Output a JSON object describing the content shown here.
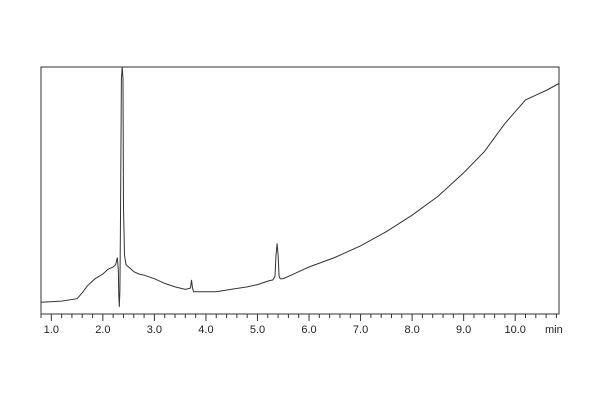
{
  "chart_data": {
    "type": "line",
    "title": "",
    "xlabel": "",
    "ylabel": "",
    "x_unit": "min",
    "xlim": [
      0.8,
      10.85
    ],
    "ylim": [
      -0.05,
      1.0
    ],
    "x_ticks": [
      "1.0",
      "2.0",
      "3.0",
      "4.0",
      "5.0",
      "6.0",
      "7.0",
      "8.0",
      "9.0",
      "10.0"
    ],
    "x_tick_values": [
      1.0,
      2.0,
      3.0,
      4.0,
      5.0,
      6.0,
      7.0,
      8.0,
      9.0,
      10.0
    ],
    "grid": false,
    "series": [
      {
        "name": "",
        "x": [
          0.8,
          1.2,
          1.5,
          1.6,
          1.7,
          1.85,
          2.0,
          2.1,
          2.2,
          2.25,
          2.28,
          2.3,
          2.31,
          2.32,
          2.33,
          2.34,
          2.36,
          2.375,
          2.39,
          2.4,
          2.42,
          2.45,
          2.5,
          2.55,
          2.6,
          2.7,
          2.8,
          3.0,
          3.2,
          3.4,
          3.6,
          3.7,
          3.72,
          3.74,
          3.76,
          3.78,
          3.8,
          3.9,
          4.0,
          4.2,
          4.5,
          4.8,
          5.0,
          5.2,
          5.3,
          5.34,
          5.36,
          5.38,
          5.4,
          5.42,
          5.44,
          5.5,
          5.8,
          6.0,
          6.5,
          7.0,
          7.5,
          8.0,
          8.5,
          9.0,
          9.4,
          9.6,
          9.8,
          10.0,
          10.2,
          10.4,
          10.6,
          10.85
        ],
        "y": [
          0.0,
          0.005,
          0.015,
          0.04,
          0.07,
          0.1,
          0.12,
          0.14,
          0.15,
          0.16,
          0.19,
          0.14,
          0.03,
          -0.02,
          0.05,
          0.3,
          0.95,
          1.0,
          0.95,
          0.4,
          0.2,
          0.16,
          0.15,
          0.14,
          0.13,
          0.12,
          0.115,
          0.1,
          0.08,
          0.065,
          0.055,
          0.06,
          0.095,
          0.06,
          0.045,
          0.045,
          0.045,
          0.045,
          0.045,
          0.045,
          0.055,
          0.065,
          0.075,
          0.09,
          0.095,
          0.11,
          0.2,
          0.25,
          0.2,
          0.11,
          0.1,
          0.1,
          0.13,
          0.15,
          0.19,
          0.24,
          0.3,
          0.37,
          0.45,
          0.55,
          0.64,
          0.7,
          0.76,
          0.81,
          0.86,
          0.88,
          0.9,
          0.93
        ]
      }
    ]
  }
}
